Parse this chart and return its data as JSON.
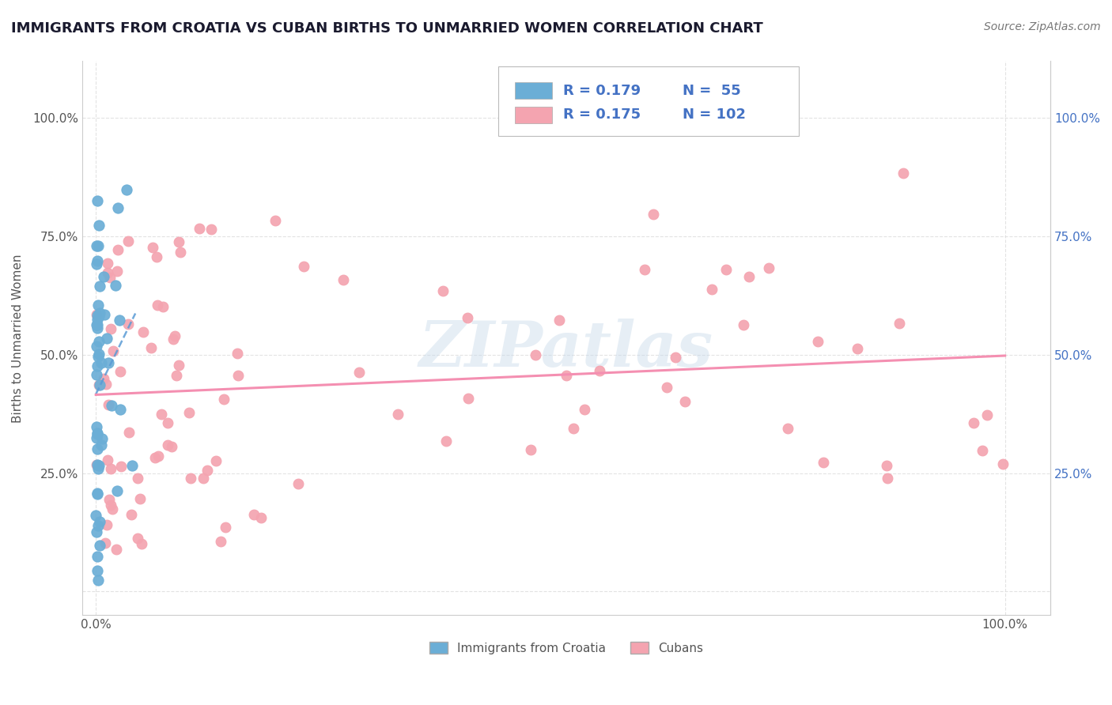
{
  "title": "IMMIGRANTS FROM CROATIA VS CUBAN BIRTHS TO UNMARRIED WOMEN CORRELATION CHART",
  "source": "Source: ZipAtlas.com",
  "ylabel": "Births to Unmarried Women",
  "legend_R_croatia": "R = 0.179",
  "legend_N_croatia": "N =  55",
  "legend_R_cuban": "R = 0.175",
  "legend_N_cuban": "N = 102",
  "legend_label_croatia": "Immigrants from Croatia",
  "legend_label_cuban": "Cubans",
  "blue_color": "#6baed6",
  "pink_color": "#f4a4b0",
  "blue_line_color": "#5b9bd5",
  "pink_line_color": "#f48fb1",
  "watermark_text": "ZIPatlas",
  "title_color": "#1a1a2e",
  "source_color": "#777777",
  "grid_color": "#dddddd",
  "background_color": "#ffffff",
  "right_tick_color": "#4472c4",
  "croatia_R": 0.179,
  "cuban_R": 0.175
}
